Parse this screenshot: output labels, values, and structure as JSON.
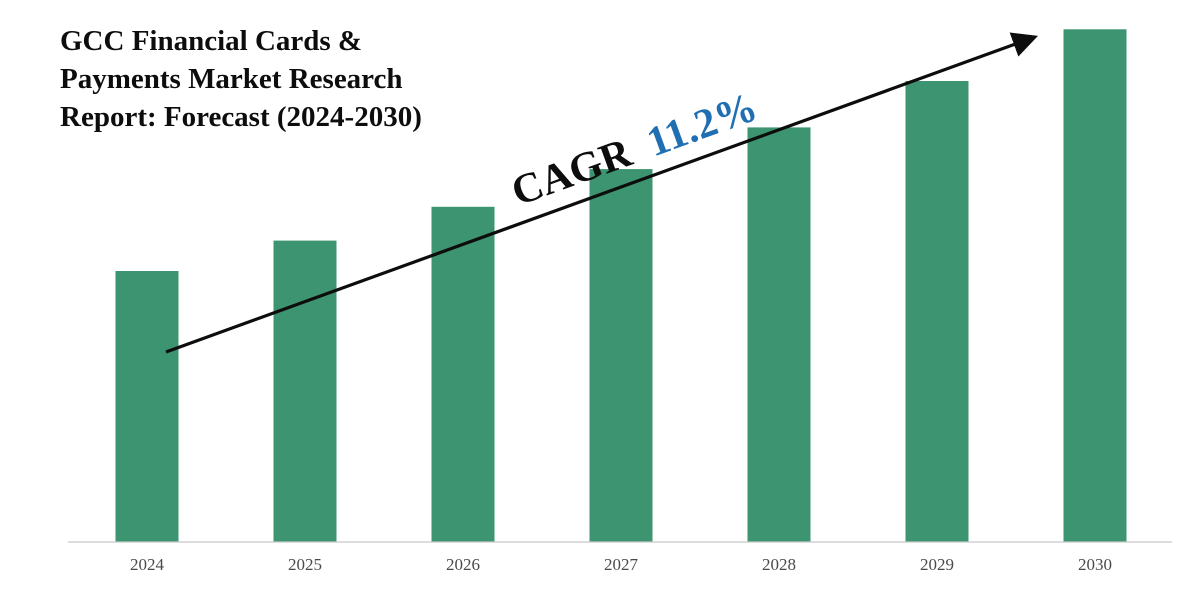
{
  "chart_data": {
    "type": "bar",
    "title": "GCC Financial Cards & Payments Market Research Report: Forecast (2024-2030)",
    "categories": [
      "2024",
      "2025",
      "2026",
      "2027",
      "2028",
      "2029",
      "2030"
    ],
    "series": [
      {
        "values": [
          1.0,
          1.112,
          1.237,
          1.376,
          1.53,
          1.701,
          1.892
        ]
      }
    ],
    "ylim": [
      0,
      2.0
    ],
    "grid": false,
    "legend": "none",
    "annotation": {
      "label": "CAGR",
      "value": "11.2%"
    },
    "colors": {
      "bar": "#3d9470",
      "axis": "#c8c8c8",
      "arrow": "#0d0d0d",
      "annotation_label": "#0d0d0d",
      "annotation_value": "#1f6fb2"
    }
  }
}
